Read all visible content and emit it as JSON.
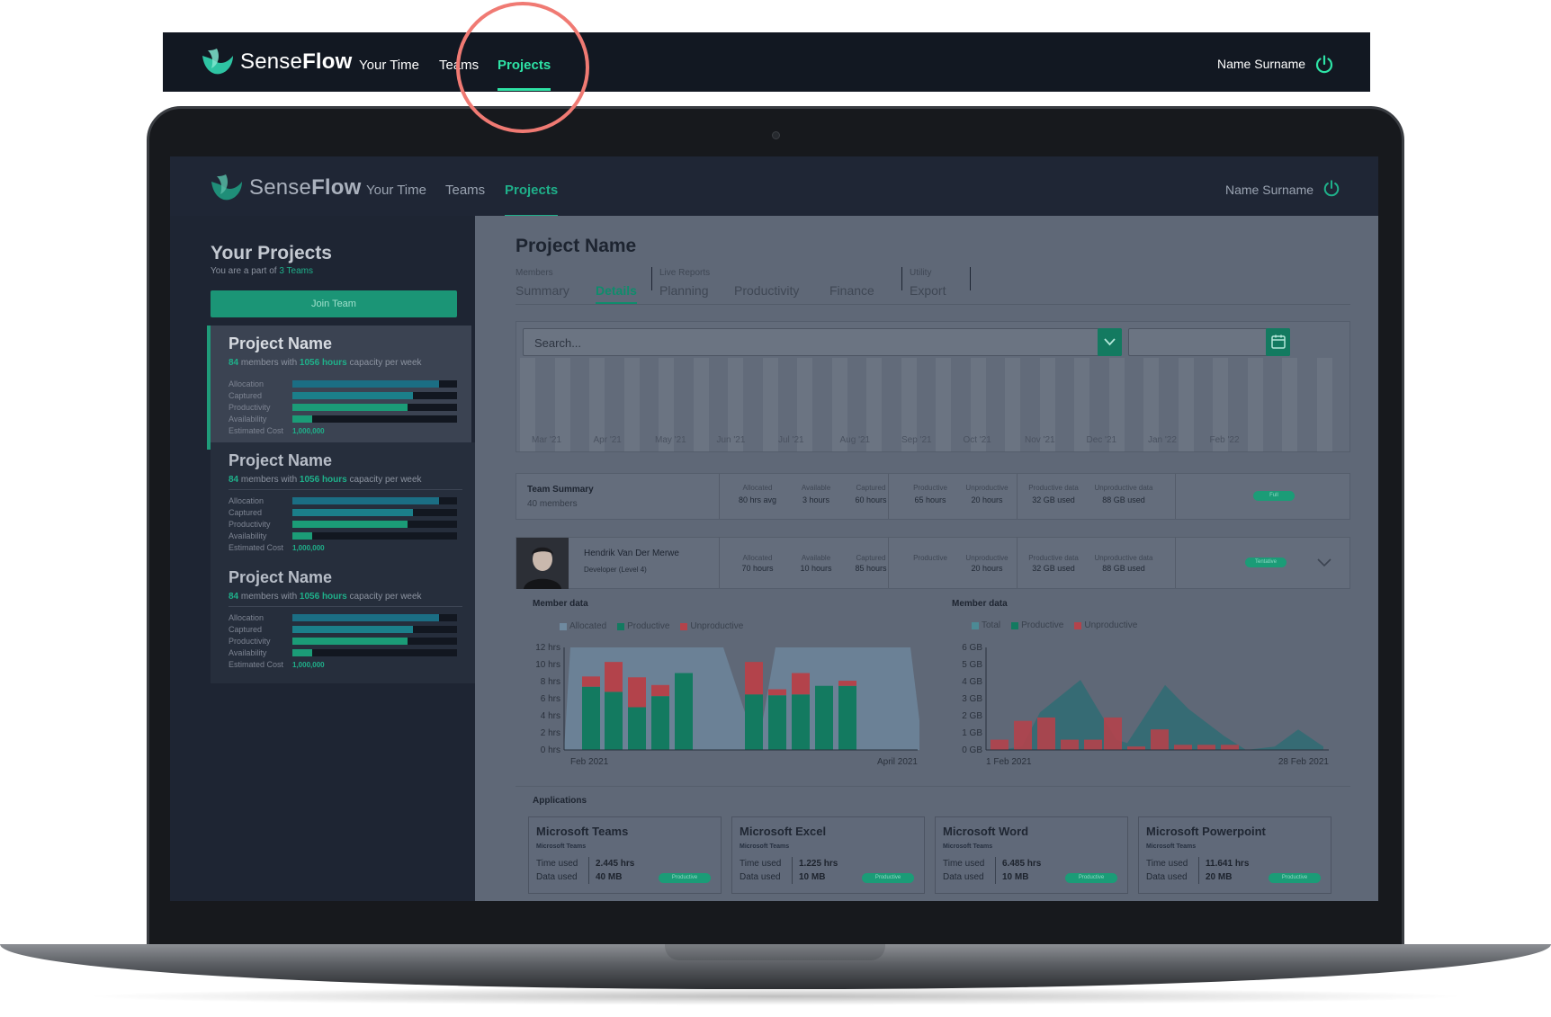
{
  "brand": {
    "light": "Sense",
    "bold": "Flow"
  },
  "nav": {
    "items": [
      "Your Time",
      "Teams",
      "Projects"
    ],
    "active": "Projects",
    "user": "Name Surname"
  },
  "colors": {
    "accent": "#2ee3a6",
    "accent_dark": "#1fb08a",
    "highlight_ring": "#f07a73",
    "bar_blue": "#1b6e84",
    "bar_green": "#1b9c77"
  },
  "sidebar": {
    "title": "Your Projects",
    "subtitle_prefix": "You are a part of ",
    "subtitle_link": "3 Teams",
    "join_button": "Join Team",
    "metric_labels": [
      "Allocation",
      "Captured",
      "Productivity",
      "Availability",
      "Estimated Cost"
    ],
    "projects": [
      {
        "name": "Project Name",
        "members": "84",
        "members_text": " members with ",
        "hours": "1056 hours",
        "hours_text": " capacity per week",
        "levels": [
          0.89,
          0.73,
          0.7,
          0.12
        ],
        "cost": "1,000,000"
      },
      {
        "name": "Project Name",
        "members": "84",
        "members_text": " members with ",
        "hours": "1056 hours",
        "hours_text": " capacity per week",
        "levels": [
          0.89,
          0.73,
          0.7,
          0.12
        ],
        "cost": "1,000,000"
      },
      {
        "name": "Project Name",
        "members": "84",
        "members_text": " members with ",
        "hours": "1056 hours",
        "hours_text": " capacity per week",
        "levels": [
          0.89,
          0.73,
          0.7,
          0.12
        ],
        "cost": "1,000,000"
      }
    ]
  },
  "main": {
    "title": "Project Name",
    "tab_groups": [
      "Members",
      "Live Reports",
      "Utility"
    ],
    "tabs": [
      "Summary",
      "Details",
      "Planning",
      "Productivity",
      "Finance",
      "Export"
    ],
    "active_tab": "Details",
    "search_placeholder": "Search...",
    "timeline_months": [
      "Mar '21",
      "Apr '21",
      "May '21",
      "Jun '21",
      "Jul '21",
      "Aug '21",
      "Sep '21",
      "Oct '21",
      "Nov '21",
      "Dec '21",
      "Jan '22",
      "Feb '22"
    ],
    "team_summary": {
      "title": "Team Summary",
      "members": "40 members",
      "cols": [
        {
          "label": "Allocated",
          "value": "80 hrs avg"
        },
        {
          "label": "Available",
          "value": "3 hours"
        },
        {
          "label": "Captured",
          "value": "60 hours"
        },
        {
          "label": "Productive",
          "value": "65 hours"
        },
        {
          "label": "Unproductive",
          "value": "20 hours"
        },
        {
          "label": "Productive data",
          "value": "32 GB used"
        },
        {
          "label": "Unproductive data",
          "value": "88 GB used"
        }
      ],
      "status": "Full"
    },
    "member": {
      "name": "Hendrik Van Der Merwe",
      "role": "Developer (Level 4)",
      "cols": [
        {
          "label": "Allocated",
          "value": "70 hours"
        },
        {
          "label": "Available",
          "value": "10 hours"
        },
        {
          "label": "Captured",
          "value": "85 hours"
        },
        {
          "label": "Productive",
          "value": ""
        },
        {
          "label": "Unproductive",
          "value": "20 hours"
        },
        {
          "label": "Productive data",
          "value": "32 GB used"
        },
        {
          "label": "Unproductive data",
          "value": "88 GB used"
        }
      ],
      "status": "Tentative"
    },
    "applications": {
      "title": "Applications",
      "row_labels": [
        "Time used",
        "Data used"
      ],
      "status": "Productive",
      "items": [
        {
          "name": "Microsoft Teams",
          "sub": "Microsoft Teams",
          "time": "2.445 hrs",
          "data": "40 MB"
        },
        {
          "name": "Microsoft Excel",
          "sub": "Microsoft Teams",
          "time": "1.225 hrs",
          "data": "10 MB"
        },
        {
          "name": "Microsoft Word",
          "sub": "Microsoft Teams",
          "time": "6.485 hrs",
          "data": "10 MB"
        },
        {
          "name": "Microsoft Powerpoint",
          "sub": "Microsoft Teams",
          "time": "11.641 hrs",
          "data": "20 MB"
        }
      ]
    }
  },
  "chart_data": [
    {
      "type": "bar",
      "title": "Member data",
      "legend": [
        "Allocated",
        "Productive",
        "Unproductive"
      ],
      "y_ticks": [
        "0 hrs",
        "2 hrs",
        "4 hrs",
        "6 hrs",
        "8 hrs",
        "10 hrs",
        "12 hrs"
      ],
      "ylim": [
        0,
        12
      ],
      "x_start_label": "Feb 2021",
      "x_end_label": "April 2021",
      "allocated_area": [
        12,
        12,
        12,
        12,
        12,
        12,
        0,
        12,
        12,
        12,
        12,
        12,
        12,
        0
      ],
      "series": [
        {
          "name": "Productive",
          "values": [
            7.4,
            6.8,
            5.0,
            6.3,
            9.0,
            0,
            0,
            6.5,
            6.4,
            6.5,
            7.5,
            7.5
          ]
        },
        {
          "name": "Unproductive",
          "values": [
            1.2,
            3.5,
            3.5,
            1.3,
            0,
            0,
            0,
            3.8,
            0.7,
            2.5,
            0,
            0.6
          ]
        }
      ]
    },
    {
      "type": "area",
      "title": "Member data",
      "legend": [
        "Total",
        "Productive",
        "Unproductive"
      ],
      "y_ticks": [
        "0 GB",
        "1 GB",
        "2 GB",
        "3 GB",
        "4 GB",
        "5 GB",
        "6 GB"
      ],
      "ylim": [
        0,
        6
      ],
      "x_start_label": "1 Feb 2021",
      "x_end_label": "28 Feb 2021",
      "area": [
        0,
        0,
        0.2,
        2.2,
        4.1,
        2.5,
        0.6,
        0.4,
        3.8,
        2.4,
        0.8,
        0,
        0.2,
        1.2,
        0.2
      ],
      "unproductive": [
        0.6,
        1.7,
        1.9,
        0.6,
        0.6,
        1.9,
        0.2,
        1.2,
        0.3,
        0.3,
        0.3
      ]
    }
  ]
}
